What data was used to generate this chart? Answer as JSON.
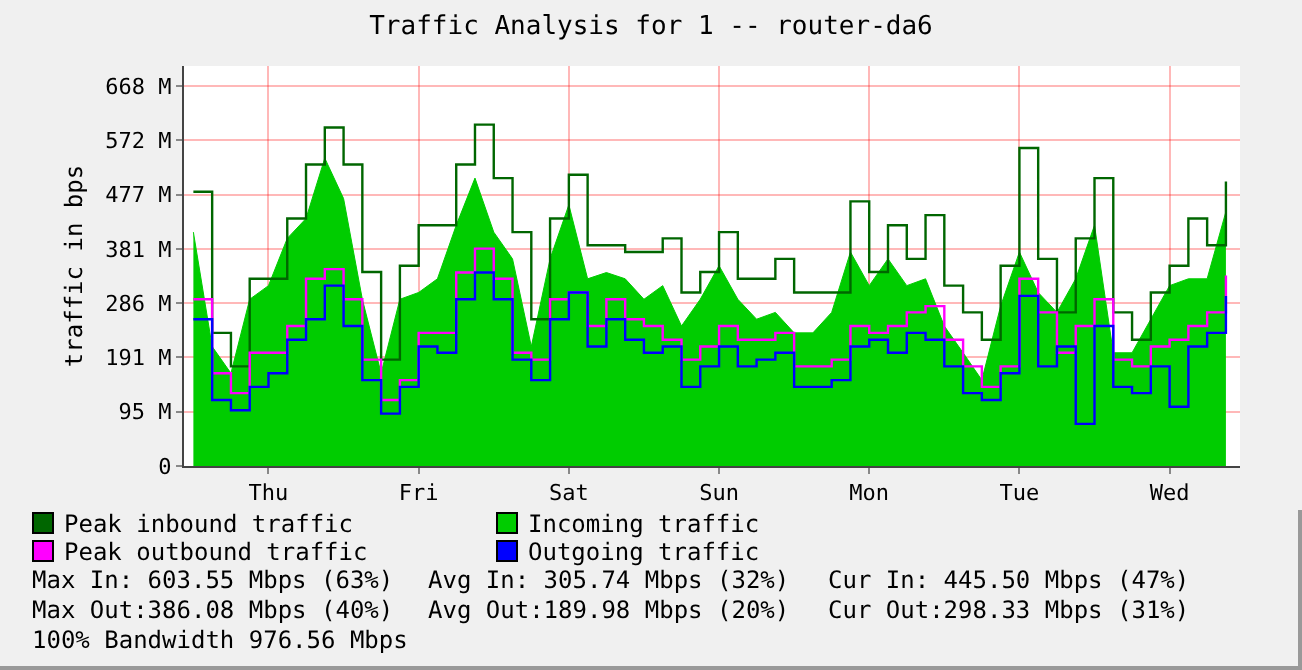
{
  "chart_data": {
    "type": "step",
    "title": "Traffic Analysis for 1 -- router-da6",
    "ylabel": "traffic in bps",
    "categories": [
      null,
      null,
      null,
      null,
      "Thu",
      null,
      null,
      null,
      null,
      null,
      null,
      null,
      "Fri",
      null,
      null,
      null,
      null,
      null,
      null,
      null,
      "Sat",
      null,
      null,
      null,
      null,
      null,
      null,
      null,
      "Sun",
      null,
      null,
      null,
      null,
      null,
      null,
      null,
      "Mon",
      null,
      null,
      null,
      null,
      null,
      null,
      null,
      "Tue",
      null,
      null,
      null,
      null,
      null,
      null,
      null,
      "Wed",
      null,
      null,
      null
    ],
    "series": [
      {
        "name": "Peak inbound traffic",
        "color": "#006600",
        "values": [
          482,
          234,
          175,
          329,
          329,
          435,
          530,
          595,
          530,
          341,
          187,
          352,
          423,
          423,
          530,
          600,
          506,
          411,
          258,
          435,
          512,
          388,
          388,
          376,
          376,
          400,
          305,
          341,
          411,
          329,
          329,
          364,
          305,
          305,
          305,
          465,
          341,
          423,
          364,
          441,
          317,
          270,
          222,
          352,
          559,
          364,
          270,
          400,
          506,
          270,
          222,
          305,
          352,
          435,
          388,
          500
        ]
      },
      {
        "name": "Incoming traffic",
        "type": "area",
        "color": "#00cc00",
        "values": [
          411,
          210,
          163,
          293,
          317,
          400,
          435,
          541,
          470,
          293,
          163,
          293,
          305,
          329,
          423,
          506,
          411,
          364,
          210,
          364,
          459,
          329,
          340,
          329,
          293,
          317,
          246,
          293,
          352,
          293,
          258,
          270,
          234,
          234,
          270,
          376,
          317,
          364,
          317,
          329,
          246,
          199,
          151,
          281,
          376,
          305,
          270,
          329,
          423,
          199,
          199,
          258,
          317,
          329,
          329,
          447
        ]
      },
      {
        "name": "Peak outbound traffic",
        "color": "#ff00ff",
        "values": [
          293,
          163,
          128,
          199,
          199,
          246,
          329,
          346,
          293,
          187,
          116,
          151,
          234,
          234,
          340,
          382,
          329,
          199,
          187,
          293,
          305,
          246,
          293,
          258,
          246,
          222,
          187,
          210,
          246,
          222,
          222,
          234,
          175,
          175,
          187,
          246,
          234,
          246,
          270,
          281,
          222,
          175,
          139,
          175,
          329,
          270,
          199,
          246,
          293,
          187,
          175,
          210,
          222,
          246,
          270,
          335
        ]
      },
      {
        "name": "Outgoing traffic",
        "color": "#0000ff",
        "values": [
          258,
          116,
          98,
          139,
          163,
          222,
          258,
          317,
          246,
          151,
          92,
          139,
          210,
          199,
          293,
          340,
          293,
          187,
          151,
          258,
          305,
          210,
          258,
          222,
          199,
          210,
          139,
          175,
          210,
          175,
          187,
          199,
          139,
          139,
          151,
          210,
          222,
          199,
          234,
          222,
          175,
          128,
          116,
          163,
          299,
          175,
          210,
          74,
          246,
          139,
          128,
          175,
          104,
          210,
          234,
          299
        ]
      }
    ],
    "ylim": [
      0,
      703
    ],
    "yticks": [
      0,
      {
        "value": 95.37,
        "label": "95 M"
      },
      {
        "value": 190.73,
        "label": "191 M"
      },
      {
        "value": 286.1,
        "label": "286 M"
      },
      {
        "value": 381.47,
        "label": "381 M"
      },
      {
        "value": 476.84,
        "label": "477 M"
      },
      {
        "value": 572.2,
        "label": "572 M"
      },
      {
        "value": 667.57,
        "label": "668 M"
      }
    ],
    "grid": true,
    "legend": "bottom",
    "annotations": [
      "Max In: 603.55 Mbps (63%)",
      "Avg In: 305.74 Mbps (32%)",
      "Cur In: 445.50 Mbps (47%)",
      "Max Out:386.08 Mbps (40%)",
      "Avg Out:189.98 Mbps (20%)",
      "Cur Out:298.33 Mbps (31%)",
      "100% Bandwidth 976.56 Mbps"
    ]
  }
}
